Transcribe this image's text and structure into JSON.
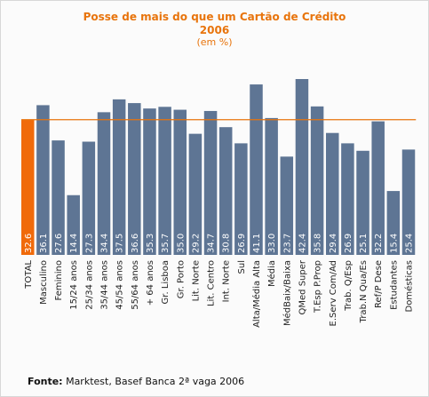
{
  "chart_data": {
    "type": "bar",
    "title": "Posse de mais do que um Cartão de Crédito",
    "subtitle": "2006",
    "unit_label": "(em %)",
    "reference_line": 32.6,
    "highlight_index": 0,
    "categories": [
      "TOTAL",
      "Masculino",
      "Feminino",
      "15/24 anos",
      "25/34 anos",
      "35/44 anos",
      "45/54 anos",
      "55/64 anos",
      "+ 64 anos",
      "Gr. Lisboa",
      "Gr. Porto",
      "Lit. Norte",
      "Lit. Centro",
      "Int. Norte",
      "Sul",
      "Alta/Média Alta",
      "Média",
      "MédBaix/Baixa",
      "QMed Super",
      "T.Esp P.Prop",
      "E.Serv Com/Ad",
      "Trab. Q/Esp",
      "Trab.N Qua/Es",
      "Ref/P Dese",
      "Estudantes",
      "Domésticas"
    ],
    "values": [
      32.6,
      36.1,
      27.6,
      14.4,
      27.3,
      34.4,
      37.5,
      36.6,
      35.3,
      35.7,
      35.0,
      29.2,
      34.7,
      30.8,
      26.9,
      41.1,
      33.0,
      23.7,
      42.4,
      35.8,
      29.4,
      26.9,
      25.1,
      32.2,
      15.4,
      25.4
    ],
    "value_labels": [
      "32.6",
      "36.1",
      "27.6",
      "14.4",
      "27.3",
      "34.4",
      "37.5",
      "36.6",
      "35.3",
      "35.7",
      "35.0",
      "29.2",
      "34.7",
      "30.8",
      "26.9",
      "41.1",
      "33.0",
      "23.7",
      "42.4",
      "35.8",
      "29.4",
      "26.9",
      "25.1",
      "32.2",
      "15.4",
      "25.4"
    ],
    "colors": {
      "bar": "#5e7594",
      "highlight": "#f06a0a",
      "reference_line": "#e8740c",
      "title": "#e8740c"
    }
  },
  "footer": {
    "label": "Fonte:",
    "text": "Marktest, Basef Banca 2ª vaga 2006"
  }
}
